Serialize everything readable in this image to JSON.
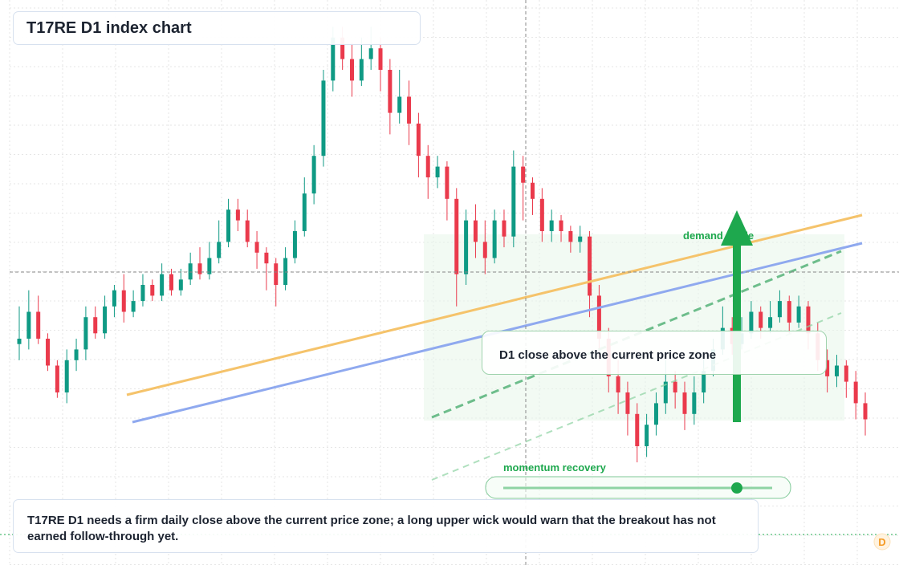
{
  "title": "T17RE D1 index chart",
  "note": "D1 close above the current price zone",
  "caption": "T17RE D1 needs a firm daily close above the current price zone; a long upper wick would warn that the breakout has not earned follow-through yet.",
  "labels": {
    "demand": "demand guide",
    "momentum": "momentum recovery",
    "badge": "D"
  },
  "colors": {
    "up": "#0f9a84",
    "down": "#ea3a4c",
    "yellow_line": "#f5c36b",
    "blue_line": "#8fa9ef",
    "green": "#1ea84e",
    "green_light": "#e7f6ea",
    "grid": "#e6e6e6",
    "badge": "#f59a23"
  },
  "chart_data": {
    "type": "candlestick",
    "timeframe": "D1",
    "symbol": "T17RE",
    "ylim": [
      0,
      100
    ],
    "candles": [
      [
        39,
        40,
        46,
        36
      ],
      [
        40,
        45,
        49,
        38
      ],
      [
        45,
        40,
        48,
        39
      ],
      [
        40,
        35,
        41,
        34
      ],
      [
        35,
        30,
        36,
        29
      ],
      [
        30,
        36,
        38,
        28
      ],
      [
        36,
        38,
        40,
        34
      ],
      [
        38,
        44,
        46,
        36
      ],
      [
        44,
        41,
        46,
        40
      ],
      [
        41,
        46,
        48,
        40
      ],
      [
        46,
        49,
        50,
        44
      ],
      [
        49,
        45,
        52,
        43
      ],
      [
        45,
        47,
        49,
        44
      ],
      [
        47,
        50,
        52,
        46
      ],
      [
        50,
        48,
        51,
        47
      ],
      [
        48,
        52,
        54,
        47
      ],
      [
        52,
        49,
        53,
        48
      ],
      [
        49,
        51,
        53,
        48
      ],
      [
        51,
        54,
        56,
        50
      ],
      [
        54,
        52,
        57,
        51
      ],
      [
        52,
        55,
        58,
        51
      ],
      [
        55,
        58,
        62,
        54
      ],
      [
        58,
        64,
        66,
        57
      ],
      [
        64,
        62,
        66,
        60
      ],
      [
        62,
        58,
        64,
        57
      ],
      [
        58,
        56,
        60,
        53
      ],
      [
        56,
        54,
        57,
        49
      ],
      [
        54,
        50,
        55,
        46
      ],
      [
        50,
        55,
        57,
        49
      ],
      [
        55,
        60,
        62,
        54
      ],
      [
        60,
        67,
        70,
        59
      ],
      [
        67,
        74,
        76,
        65
      ],
      [
        74,
        88,
        90,
        72
      ],
      [
        88,
        96,
        98,
        86
      ],
      [
        96,
        92,
        98,
        90
      ],
      [
        92,
        88,
        95,
        85
      ],
      [
        88,
        92,
        96,
        87
      ],
      [
        92,
        94,
        98,
        90
      ],
      [
        94,
        90,
        96,
        86
      ],
      [
        90,
        82,
        92,
        78
      ],
      [
        82,
        85,
        90,
        80
      ],
      [
        85,
        80,
        88,
        76
      ],
      [
        80,
        74,
        82,
        70
      ],
      [
        74,
        70,
        76,
        66
      ],
      [
        70,
        72,
        74,
        68
      ],
      [
        72,
        66,
        73,
        62
      ],
      [
        66,
        52,
        68,
        46
      ],
      [
        52,
        62,
        64,
        50
      ],
      [
        62,
        58,
        65,
        55
      ],
      [
        58,
        55,
        62,
        52
      ],
      [
        55,
        62,
        64,
        54
      ],
      [
        62,
        59,
        64,
        57
      ],
      [
        59,
        72,
        75,
        57
      ],
      [
        72,
        69,
        74,
        62
      ],
      [
        69,
        66,
        70,
        63
      ],
      [
        66,
        60,
        68,
        58
      ],
      [
        60,
        62,
        64,
        58
      ],
      [
        62,
        60,
        63,
        58
      ],
      [
        60,
        58,
        61,
        56
      ],
      [
        58,
        59,
        61,
        56
      ],
      [
        59,
        48,
        60,
        44
      ],
      [
        48,
        40,
        50,
        36
      ],
      [
        40,
        33,
        42,
        30
      ],
      [
        33,
        30,
        36,
        26
      ],
      [
        30,
        26,
        32,
        22
      ],
      [
        26,
        20,
        28,
        17
      ],
      [
        20,
        24,
        26,
        18
      ],
      [
        24,
        28,
        30,
        22
      ],
      [
        28,
        32,
        36,
        26
      ],
      [
        32,
        30,
        34,
        27
      ],
      [
        30,
        26,
        32,
        23
      ],
      [
        26,
        30,
        33,
        24
      ],
      [
        30,
        34,
        37,
        28
      ],
      [
        34,
        38,
        40,
        33
      ],
      [
        38,
        42,
        46,
        37
      ],
      [
        42,
        39,
        44,
        37
      ],
      [
        39,
        41,
        44,
        38
      ],
      [
        41,
        45,
        47,
        40
      ],
      [
        45,
        42,
        46,
        40
      ],
      [
        42,
        44,
        47,
        41
      ],
      [
        44,
        47,
        49,
        43
      ],
      [
        47,
        43,
        48,
        41
      ],
      [
        43,
        46,
        48,
        42
      ],
      [
        46,
        41,
        47,
        38
      ],
      [
        41,
        36,
        43,
        34
      ],
      [
        36,
        33,
        38,
        30
      ],
      [
        33,
        35,
        37,
        31
      ],
      [
        35,
        32,
        36,
        29
      ],
      [
        32,
        28,
        34,
        25
      ],
      [
        28,
        25,
        30,
        22
      ]
    ]
  }
}
